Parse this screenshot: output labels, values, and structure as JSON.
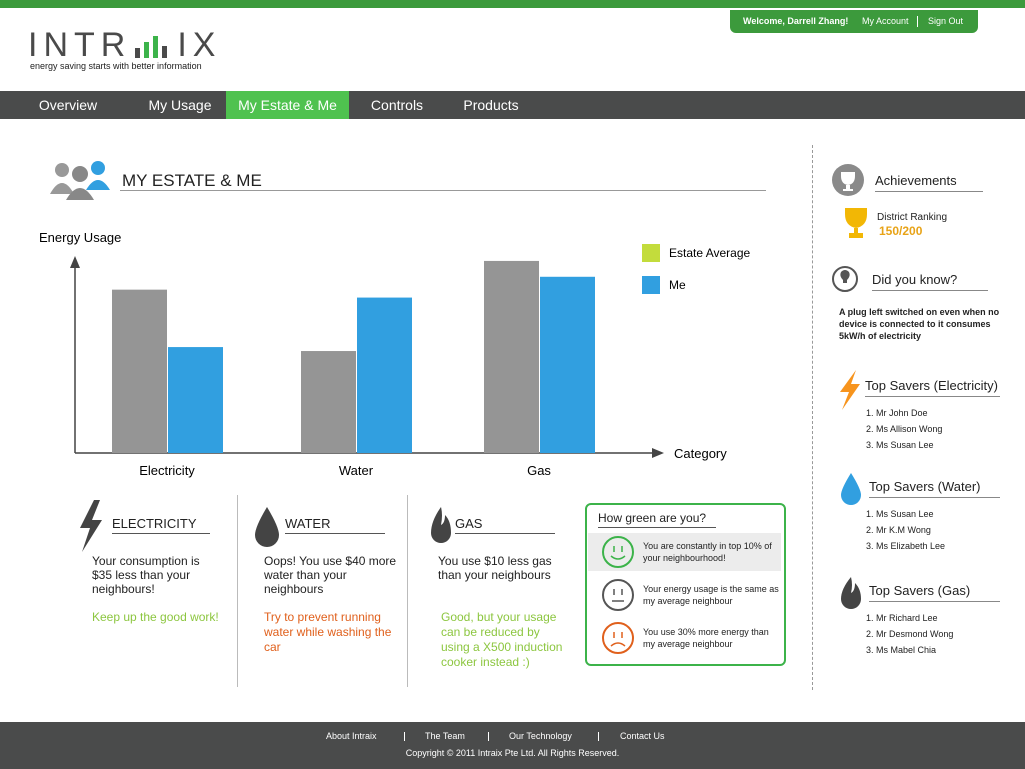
{
  "header": {
    "logo_left": "INTR",
    "logo_right": "IX",
    "tagline": "energy saving starts with better information",
    "welcome": "Welcome,",
    "user": "Darrell Zhang!",
    "links": [
      "My Account",
      "Sign Out"
    ]
  },
  "nav": {
    "items": [
      "Overview",
      "My Usage",
      "My Estate & Me",
      "Controls",
      "Products"
    ],
    "active": 2
  },
  "section_title": "MY ESTATE & ME",
  "chart_data": {
    "type": "bar",
    "y_label": "Energy Usage",
    "x_label": "Category",
    "categories": [
      "Electricity",
      "Water",
      "Gas"
    ],
    "series": [
      {
        "name": "Estate Average",
        "color": "#959595",
        "legend_color": "#c3dc3c",
        "values": [
          165,
          103,
          194
        ]
      },
      {
        "name": "Me",
        "color": "#319fe0",
        "legend_color": "#319fe0",
        "values": [
          107,
          157,
          178
        ]
      }
    ],
    "ylim": [
      0,
      200
    ]
  },
  "cards": [
    {
      "title": "ELECTRICITY",
      "text": "Your consumption is $35 less than your neighbours!",
      "note": "Keep up the good work!",
      "note_color": "#8cc63f"
    },
    {
      "title": "WATER",
      "text": "Oops! You use $40 more water than your neighbours",
      "note": "Try to prevent running water while washing the car",
      "note_color": "#e0601c"
    },
    {
      "title": "GAS",
      "text": "You use $10 less gas than your neighbours",
      "note": "Good, but your usage can be reduced by using a X500 induction cooker instead :)",
      "note_color": "#8cc63f"
    }
  ],
  "green_box": {
    "title": "How green are you?",
    "items": [
      {
        "text": "You are constantly in top 10% of your neighbourhood!",
        "mood": "happy",
        "color": "#3cb34a"
      },
      {
        "text": "Your energy usage is the same as my average neighbour",
        "mood": "neutral",
        "color": "#555555"
      },
      {
        "text": "You use 30% more energy than my average neighbour",
        "mood": "sad",
        "color": "#e0601c"
      }
    ]
  },
  "sidebar": {
    "achievements": {
      "title": "Achievements",
      "label": "District Ranking",
      "value": "150/200"
    },
    "did_you_know": {
      "title": "Did you know?",
      "text": "A plug left switched on even when no device is connected to it consumes 5kW/h of electricity"
    },
    "top_savers": [
      {
        "title": "Top Savers (Electricity)",
        "names": [
          "1. Mr John Doe",
          "2. Ms Allison Wong",
          "3. Ms Susan Lee"
        ],
        "color": "#f7941d"
      },
      {
        "title": "Top Savers (Water)",
        "names": [
          "1. Ms Susan Lee",
          "2. Mr K.M Wong",
          "3. Ms Elizabeth Lee"
        ],
        "color": "#319fe0"
      },
      {
        "title": "Top Savers (Gas)",
        "names": [
          "1. Mr Richard Lee",
          "2. Mr Desmond Wong",
          "3. Ms Mabel Chia"
        ],
        "color": "#444444"
      }
    ]
  },
  "footer": {
    "links": [
      "About Intraix",
      "The Team",
      "Our Technology",
      "Contact Us"
    ],
    "copyright": "Copyright © 2011 Intraix Pte Ltd. All Rights Reserved."
  }
}
